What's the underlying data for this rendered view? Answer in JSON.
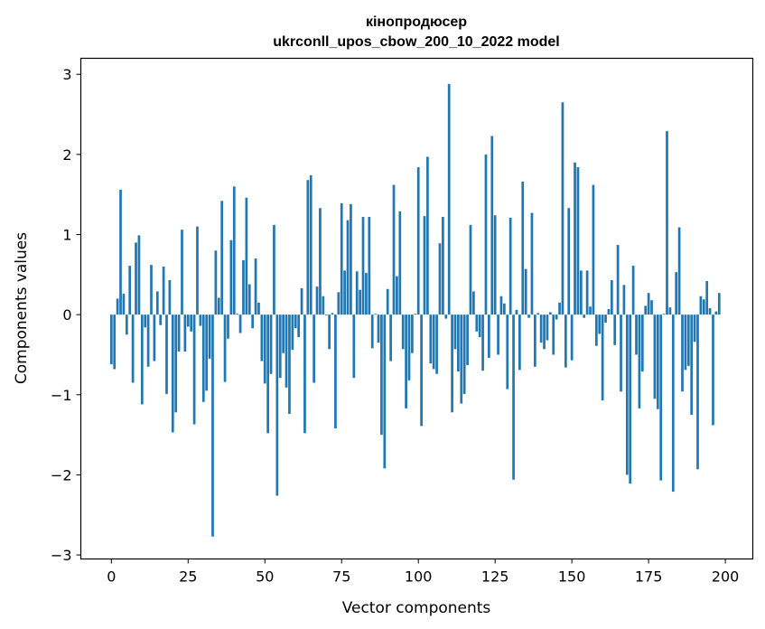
{
  "chart_data": {
    "type": "bar",
    "title_line1": "кінопродюсер",
    "title_line2": "ukrconll_upos_cbow_200_10_2022 model",
    "xlabel": "Vector components",
    "ylabel": "Components values",
    "xlim": [
      -9.95,
      208.95
    ],
    "ylim": [
      -3.05,
      3.2
    ],
    "xticks": [
      0,
      25,
      50,
      75,
      100,
      125,
      150,
      175,
      200
    ],
    "yticks": [
      -3,
      -2,
      -1,
      0,
      1,
      2,
      3
    ],
    "ytick_labels": [
      "−3",
      "−2",
      "−1",
      "0",
      "1",
      "2",
      "3"
    ],
    "grid": false,
    "bar_color": "#1f77b4",
    "values": [
      -0.62,
      -0.68,
      0.2,
      1.56,
      0.26,
      -0.25,
      0.61,
      -0.85,
      0.9,
      0.99,
      -1.12,
      -0.16,
      -0.65,
      0.62,
      -0.58,
      0.29,
      -0.13,
      0.6,
      -0.99,
      0.43,
      -1.47,
      -1.22,
      -0.46,
      1.06,
      -0.46,
      -0.15,
      -0.21,
      -1.37,
      1.1,
      -0.14,
      -1.09,
      -0.95,
      -0.55,
      -2.77,
      0.8,
      0.21,
      1.42,
      -0.84,
      -0.3,
      0.93,
      1.6,
      0.01,
      -0.23,
      0.68,
      1.46,
      0.38,
      -0.17,
      0.7,
      0.15,
      -0.58,
      -0.86,
      -1.48,
      -0.74,
      1.12,
      -2.26,
      -0.79,
      -0.48,
      -0.91,
      -1.24,
      -0.44,
      -0.17,
      -0.28,
      0.33,
      -1.48,
      1.68,
      1.74,
      -0.85,
      0.35,
      1.33,
      0.23,
      -0.01,
      -0.43,
      0.02,
      -1.42,
      0.28,
      1.39,
      0.55,
      1.18,
      1.38,
      -0.79,
      0.54,
      0.31,
      1.22,
      0.52,
      1.22,
      -0.42,
      0.01,
      -0.35,
      -1.5,
      -1.92,
      0.32,
      -0.58,
      1.62,
      0.48,
      1.29,
      -0.43,
      -1.17,
      -0.82,
      -0.48,
      0.01,
      1.84,
      -1.39,
      1.23,
      1.97,
      -0.61,
      -0.68,
      -0.74,
      0.89,
      1.22,
      -0.05,
      2.88,
      -1.22,
      -0.43,
      -0.71,
      -1.11,
      -0.99,
      -0.63,
      1.12,
      0.29,
      -0.21,
      -0.28,
      -0.7,
      2.0,
      -0.54,
      2.23,
      1.24,
      -0.5,
      0.23,
      0.14,
      -0.93,
      1.21,
      -2.06,
      0.06,
      -0.69,
      1.66,
      0.57,
      -0.04,
      1.27,
      -0.65,
      0.02,
      -0.35,
      -0.43,
      -0.32,
      0.03,
      -0.5,
      -0.06,
      0.15,
      2.65,
      -0.66,
      1.33,
      -0.57,
      1.9,
      1.84,
      0.55,
      -0.04,
      0.55,
      0.1,
      1.62,
      -0.39,
      -0.24,
      -1.07,
      -0.1,
      0.07,
      0.43,
      -0.38,
      0.87,
      -0.96,
      0.37,
      -2.0,
      -2.11,
      0.61,
      -0.5,
      -1.17,
      -0.71,
      0.11,
      0.27,
      0.18,
      -1.05,
      -1.18,
      -2.07,
      0.01,
      2.29,
      0.09,
      -2.21,
      0.53,
      1.09,
      -0.96,
      -0.69,
      -0.64,
      -1.25,
      -0.34,
      -1.93,
      0.23,
      0.19,
      0.42,
      0.08,
      -1.38,
      0.04,
      0.27
    ]
  }
}
